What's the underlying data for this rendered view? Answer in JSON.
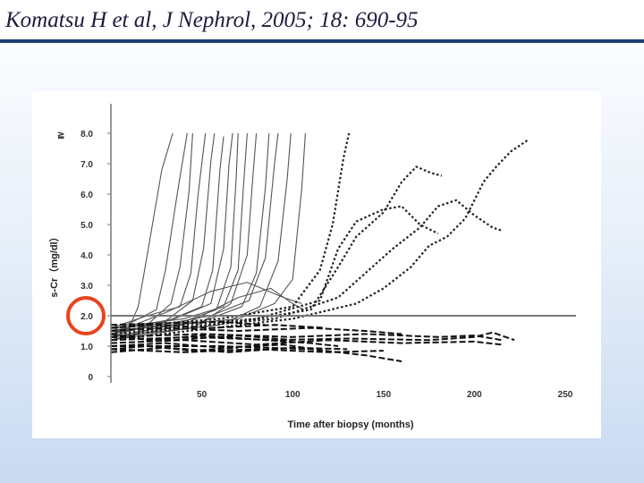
{
  "slide": {
    "title": "Komatsu H et al, J Nephrol, 2005; 18: 690-95"
  },
  "colors": {
    "title_rule": "#1f3f72",
    "highlight_circle": "#e8431e",
    "threshold_line": "#777777",
    "progressive_curves": "#555555",
    "dotted_curves": "#222222",
    "stable_curves": "#111111"
  },
  "chart_data": {
    "type": "line",
    "title": "",
    "xlabel": "Time after biopsy (months)",
    "ylabel": "s-Cr（mg/dl）",
    "xlim": [
      0,
      250
    ],
    "ylim": [
      0,
      8.3
    ],
    "x_ticks": [
      "50",
      "100",
      "150",
      "200",
      "250"
    ],
    "y_ticks": [
      "0",
      "1.0",
      "2.0",
      "3.0",
      "4.0",
      "5.0",
      "6.0",
      "7.0",
      "8.0"
    ],
    "y_top_prefix": "≧",
    "highlighted_tick": "2.0",
    "reference_line": {
      "y": 2.0
    },
    "grid": false,
    "series": [
      {
        "style": "solid",
        "points": [
          [
            0,
            1.4
          ],
          [
            10,
            1.6
          ],
          [
            15,
            2.3
          ],
          [
            20,
            4.0
          ],
          [
            28,
            6.8
          ],
          [
            34,
            8.0
          ]
        ]
      },
      {
        "style": "solid",
        "points": [
          [
            0,
            1.5
          ],
          [
            12,
            1.8
          ],
          [
            25,
            2.2
          ],
          [
            30,
            3.5
          ],
          [
            37,
            6.2
          ],
          [
            42,
            8.0
          ]
        ]
      },
      {
        "style": "solid",
        "points": [
          [
            0,
            1.3
          ],
          [
            20,
            1.7
          ],
          [
            33,
            2.4
          ],
          [
            38,
            3.6
          ],
          [
            43,
            6.1
          ],
          [
            45,
            8.0
          ]
        ]
      },
      {
        "style": "solid",
        "points": [
          [
            0,
            1.6
          ],
          [
            20,
            2.0
          ],
          [
            38,
            2.3
          ],
          [
            44,
            3.4
          ],
          [
            48,
            6.0
          ],
          [
            52,
            8.0
          ]
        ]
      },
      {
        "style": "solid",
        "points": [
          [
            0,
            1.2
          ],
          [
            25,
            1.6
          ],
          [
            45,
            2.5
          ],
          [
            51,
            4.2
          ],
          [
            55,
            7.1
          ],
          [
            57,
            8.0
          ]
        ]
      },
      {
        "style": "solid",
        "points": [
          [
            0,
            1.4
          ],
          [
            30,
            1.8
          ],
          [
            50,
            2.3
          ],
          [
            56,
            3.5
          ],
          [
            60,
            6.8
          ],
          [
            62,
            7.9
          ]
        ]
      },
      {
        "style": "solid",
        "points": [
          [
            0,
            1.5
          ],
          [
            35,
            1.9
          ],
          [
            55,
            2.4
          ],
          [
            62,
            4.2
          ],
          [
            65,
            7.0
          ],
          [
            67,
            8.0
          ]
        ]
      },
      {
        "style": "solid",
        "points": [
          [
            0,
            1.3
          ],
          [
            35,
            1.7
          ],
          [
            58,
            2.2
          ],
          [
            66,
            3.6
          ],
          [
            69,
            6.6
          ],
          [
            70,
            8.0
          ]
        ]
      },
      {
        "style": "solid",
        "points": [
          [
            0,
            1.6
          ],
          [
            40,
            1.9
          ],
          [
            62,
            2.3
          ],
          [
            70,
            3.5
          ],
          [
            73,
            6.3
          ],
          [
            75,
            8.0
          ]
        ]
      },
      {
        "style": "solid",
        "points": [
          [
            0,
            1.2
          ],
          [
            45,
            1.6
          ],
          [
            66,
            2.4
          ],
          [
            75,
            4.0
          ],
          [
            78,
            6.5
          ],
          [
            80,
            8.0
          ]
        ]
      },
      {
        "style": "solid",
        "points": [
          [
            0,
            1.5
          ],
          [
            50,
            1.8
          ],
          [
            72,
            2.3
          ],
          [
            80,
            3.4
          ],
          [
            85,
            6.2
          ],
          [
            87,
            8.0
          ]
        ]
      },
      {
        "style": "solid",
        "points": [
          [
            0,
            1.4
          ],
          [
            55,
            2.0
          ],
          [
            76,
            2.5
          ],
          [
            85,
            3.9
          ],
          [
            90,
            7.0
          ],
          [
            92,
            8.0
          ]
        ]
      },
      {
        "style": "solid",
        "points": [
          [
            0,
            1.3
          ],
          [
            60,
            1.7
          ],
          [
            82,
            2.3
          ],
          [
            92,
            3.8
          ],
          [
            97,
            6.5
          ],
          [
            99,
            8.0
          ]
        ]
      },
      {
        "style": "solid",
        "points": [
          [
            0,
            1.5
          ],
          [
            70,
            1.9
          ],
          [
            90,
            2.4
          ],
          [
            100,
            3.2
          ],
          [
            105,
            6.2
          ],
          [
            107,
            8.0
          ]
        ]
      },
      {
        "style": "solid",
        "points": [
          [
            0,
            1.2
          ],
          [
            40,
            1.7
          ],
          [
            70,
            2.6
          ],
          [
            88,
            2.9
          ],
          [
            100,
            2.4
          ],
          [
            106,
            2.2
          ]
        ]
      },
      {
        "style": "solid",
        "points": [
          [
            0,
            1.4
          ],
          [
            30,
            2.1
          ],
          [
            55,
            2.8
          ],
          [
            75,
            3.1
          ],
          [
            95,
            2.6
          ],
          [
            105,
            2.4
          ]
        ]
      },
      {
        "style": "dotted",
        "points": [
          [
            0,
            1.6
          ],
          [
            60,
            1.9
          ],
          [
            100,
            2.3
          ],
          [
            115,
            3.5
          ],
          [
            122,
            5.0
          ],
          [
            128,
            7.2
          ],
          [
            131,
            8.0
          ]
        ]
      },
      {
        "style": "dotted",
        "points": [
          [
            0,
            1.3
          ],
          [
            70,
            1.8
          ],
          [
            110,
            2.2
          ],
          [
            125,
            3.6
          ],
          [
            135,
            4.6
          ],
          [
            150,
            5.4
          ],
          [
            160,
            6.4
          ],
          [
            168,
            6.9
          ],
          [
            176,
            6.7
          ],
          [
            182,
            6.6
          ]
        ]
      },
      {
        "style": "dotted",
        "points": [
          [
            0,
            1.5
          ],
          [
            80,
            1.9
          ],
          [
            115,
            2.5
          ],
          [
            125,
            4.2
          ],
          [
            135,
            5.1
          ],
          [
            150,
            5.5
          ],
          [
            160,
            5.6
          ],
          [
            170,
            5.0
          ],
          [
            180,
            4.7
          ]
        ]
      },
      {
        "style": "dotted",
        "points": [
          [
            0,
            1.4
          ],
          [
            90,
            1.9
          ],
          [
            125,
            2.6
          ],
          [
            140,
            3.4
          ],
          [
            155,
            4.2
          ],
          [
            170,
            4.9
          ],
          [
            180,
            5.6
          ],
          [
            190,
            5.8
          ],
          [
            200,
            5.3
          ],
          [
            210,
            4.9
          ],
          [
            215,
            4.8
          ]
        ]
      },
      {
        "style": "dotted",
        "points": [
          [
            0,
            1.2
          ],
          [
            100,
            1.9
          ],
          [
            135,
            2.4
          ],
          [
            150,
            2.9
          ],
          [
            165,
            3.6
          ],
          [
            175,
            4.3
          ],
          [
            185,
            4.6
          ],
          [
            195,
            5.2
          ],
          [
            205,
            6.4
          ],
          [
            212,
            6.9
          ],
          [
            220,
            7.4
          ],
          [
            230,
            7.8
          ]
        ]
      },
      {
        "style": "dashed",
        "points": [
          [
            0,
            1.1
          ],
          [
            40,
            1.2
          ],
          [
            80,
            1.05
          ],
          [
            120,
            1.2
          ],
          [
            160,
            1.1
          ],
          [
            200,
            1.15
          ],
          [
            215,
            1.05
          ]
        ]
      },
      {
        "style": "dashed",
        "points": [
          [
            0,
            1.3
          ],
          [
            50,
            1.4
          ],
          [
            100,
            1.3
          ],
          [
            140,
            1.4
          ],
          [
            180,
            1.3
          ],
          [
            200,
            1.35
          ],
          [
            215,
            1.2
          ]
        ]
      },
      {
        "style": "dashed",
        "points": [
          [
            0,
            0.9
          ],
          [
            40,
            0.8
          ],
          [
            80,
            0.9
          ],
          [
            120,
            0.8
          ],
          [
            150,
            0.85
          ]
        ]
      },
      {
        "style": "dashed",
        "points": [
          [
            0,
            1.5
          ],
          [
            30,
            1.6
          ],
          [
            70,
            1.5
          ],
          [
            110,
            1.6
          ],
          [
            140,
            1.5
          ],
          [
            160,
            1.4
          ]
        ]
      },
      {
        "style": "dashed",
        "points": [
          [
            0,
            1.0
          ],
          [
            60,
            1.0
          ],
          [
            110,
            0.9
          ],
          [
            140,
            0.7
          ],
          [
            160,
            0.5
          ]
        ]
      },
      {
        "style": "dashed",
        "points": [
          [
            0,
            1.2
          ],
          [
            45,
            1.3
          ],
          [
            90,
            1.2
          ],
          [
            130,
            1.25
          ],
          [
            175,
            1.2
          ],
          [
            200,
            1.3
          ],
          [
            210,
            1.45
          ],
          [
            222,
            1.2
          ]
        ]
      },
      {
        "style": "dashed",
        "points": [
          [
            0,
            0.8
          ],
          [
            30,
            0.95
          ],
          [
            65,
            0.8
          ],
          [
            100,
            0.95
          ],
          [
            130,
            0.9
          ]
        ]
      },
      {
        "style": "dashed",
        "points": [
          [
            0,
            1.4
          ],
          [
            20,
            1.2
          ],
          [
            50,
            1.35
          ],
          [
            85,
            1.2
          ],
          [
            110,
            1.1
          ],
          [
            125,
            1.0
          ]
        ]
      },
      {
        "style": "dashed",
        "points": [
          [
            0,
            1.6
          ],
          [
            25,
            1.7
          ],
          [
            55,
            1.6
          ],
          [
            90,
            1.7
          ],
          [
            118,
            1.6
          ]
        ]
      },
      {
        "style": "dashed",
        "points": [
          [
            0,
            1.0
          ],
          [
            30,
            1.1
          ],
          [
            60,
            0.95
          ],
          [
            95,
            1.05
          ],
          [
            112,
            0.9
          ]
        ]
      },
      {
        "style": "dashed",
        "points": [
          [
            0,
            1.3
          ],
          [
            35,
            1.2
          ],
          [
            70,
            1.35
          ],
          [
            100,
            1.2
          ]
        ]
      },
      {
        "style": "dashed",
        "points": [
          [
            0,
            1.7
          ],
          [
            30,
            1.75
          ],
          [
            60,
            1.8
          ],
          [
            85,
            1.7
          ]
        ]
      },
      {
        "style": "dashed",
        "points": [
          [
            0,
            0.9
          ],
          [
            20,
            1.0
          ],
          [
            45,
            0.85
          ],
          [
            70,
            0.95
          ]
        ]
      }
    ]
  }
}
